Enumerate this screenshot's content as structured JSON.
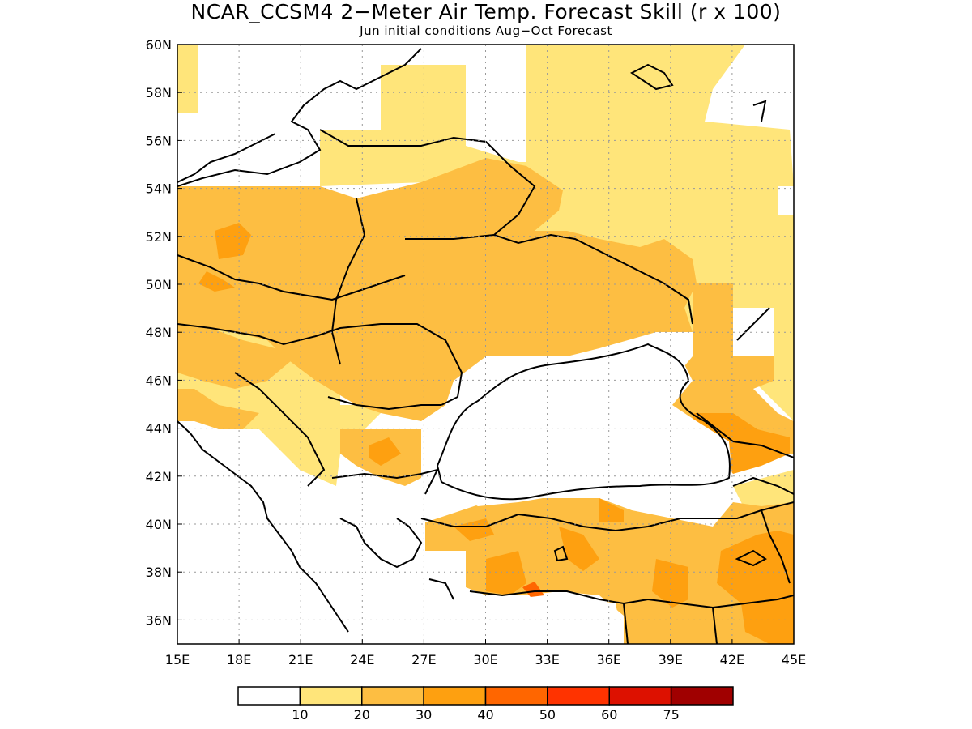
{
  "title": "NCAR_CCSM4 2−Meter Air Temp. Forecast Skill (r x 100)",
  "subtitle": "Jun initial conditions  Aug−Oct Forecast",
  "map": {
    "region": "Eastern Europe / Black Sea",
    "lon_range": [
      15,
      45
    ],
    "lat_range": [
      35,
      60
    ],
    "x_ticks": [
      "15E",
      "18E",
      "21E",
      "24E",
      "27E",
      "30E",
      "33E",
      "36E",
      "39E",
      "42E",
      "45E"
    ],
    "y_ticks": [
      "60N",
      "58N",
      "56N",
      "54N",
      "52N",
      "50N",
      "48N",
      "46N",
      "44N",
      "42N",
      "40N",
      "38N",
      "36N"
    ],
    "gridlines": true,
    "coastlines_and_borders": true
  },
  "colorbar": {
    "labels": [
      "10",
      "20",
      "30",
      "40",
      "50",
      "60",
      "75"
    ],
    "colors": [
      "#ffffff",
      "#ffe57a",
      "#fdbe42",
      "#fea010",
      "#ff6600",
      "#ff3300",
      "#dd1100",
      "#a00000"
    ]
  },
  "skill_field": {
    "levels": [
      10,
      20,
      30,
      40
    ],
    "level_colors": [
      "#ffe57a",
      "#fdbe42",
      "#fea010",
      "#ff6600"
    ]
  }
}
